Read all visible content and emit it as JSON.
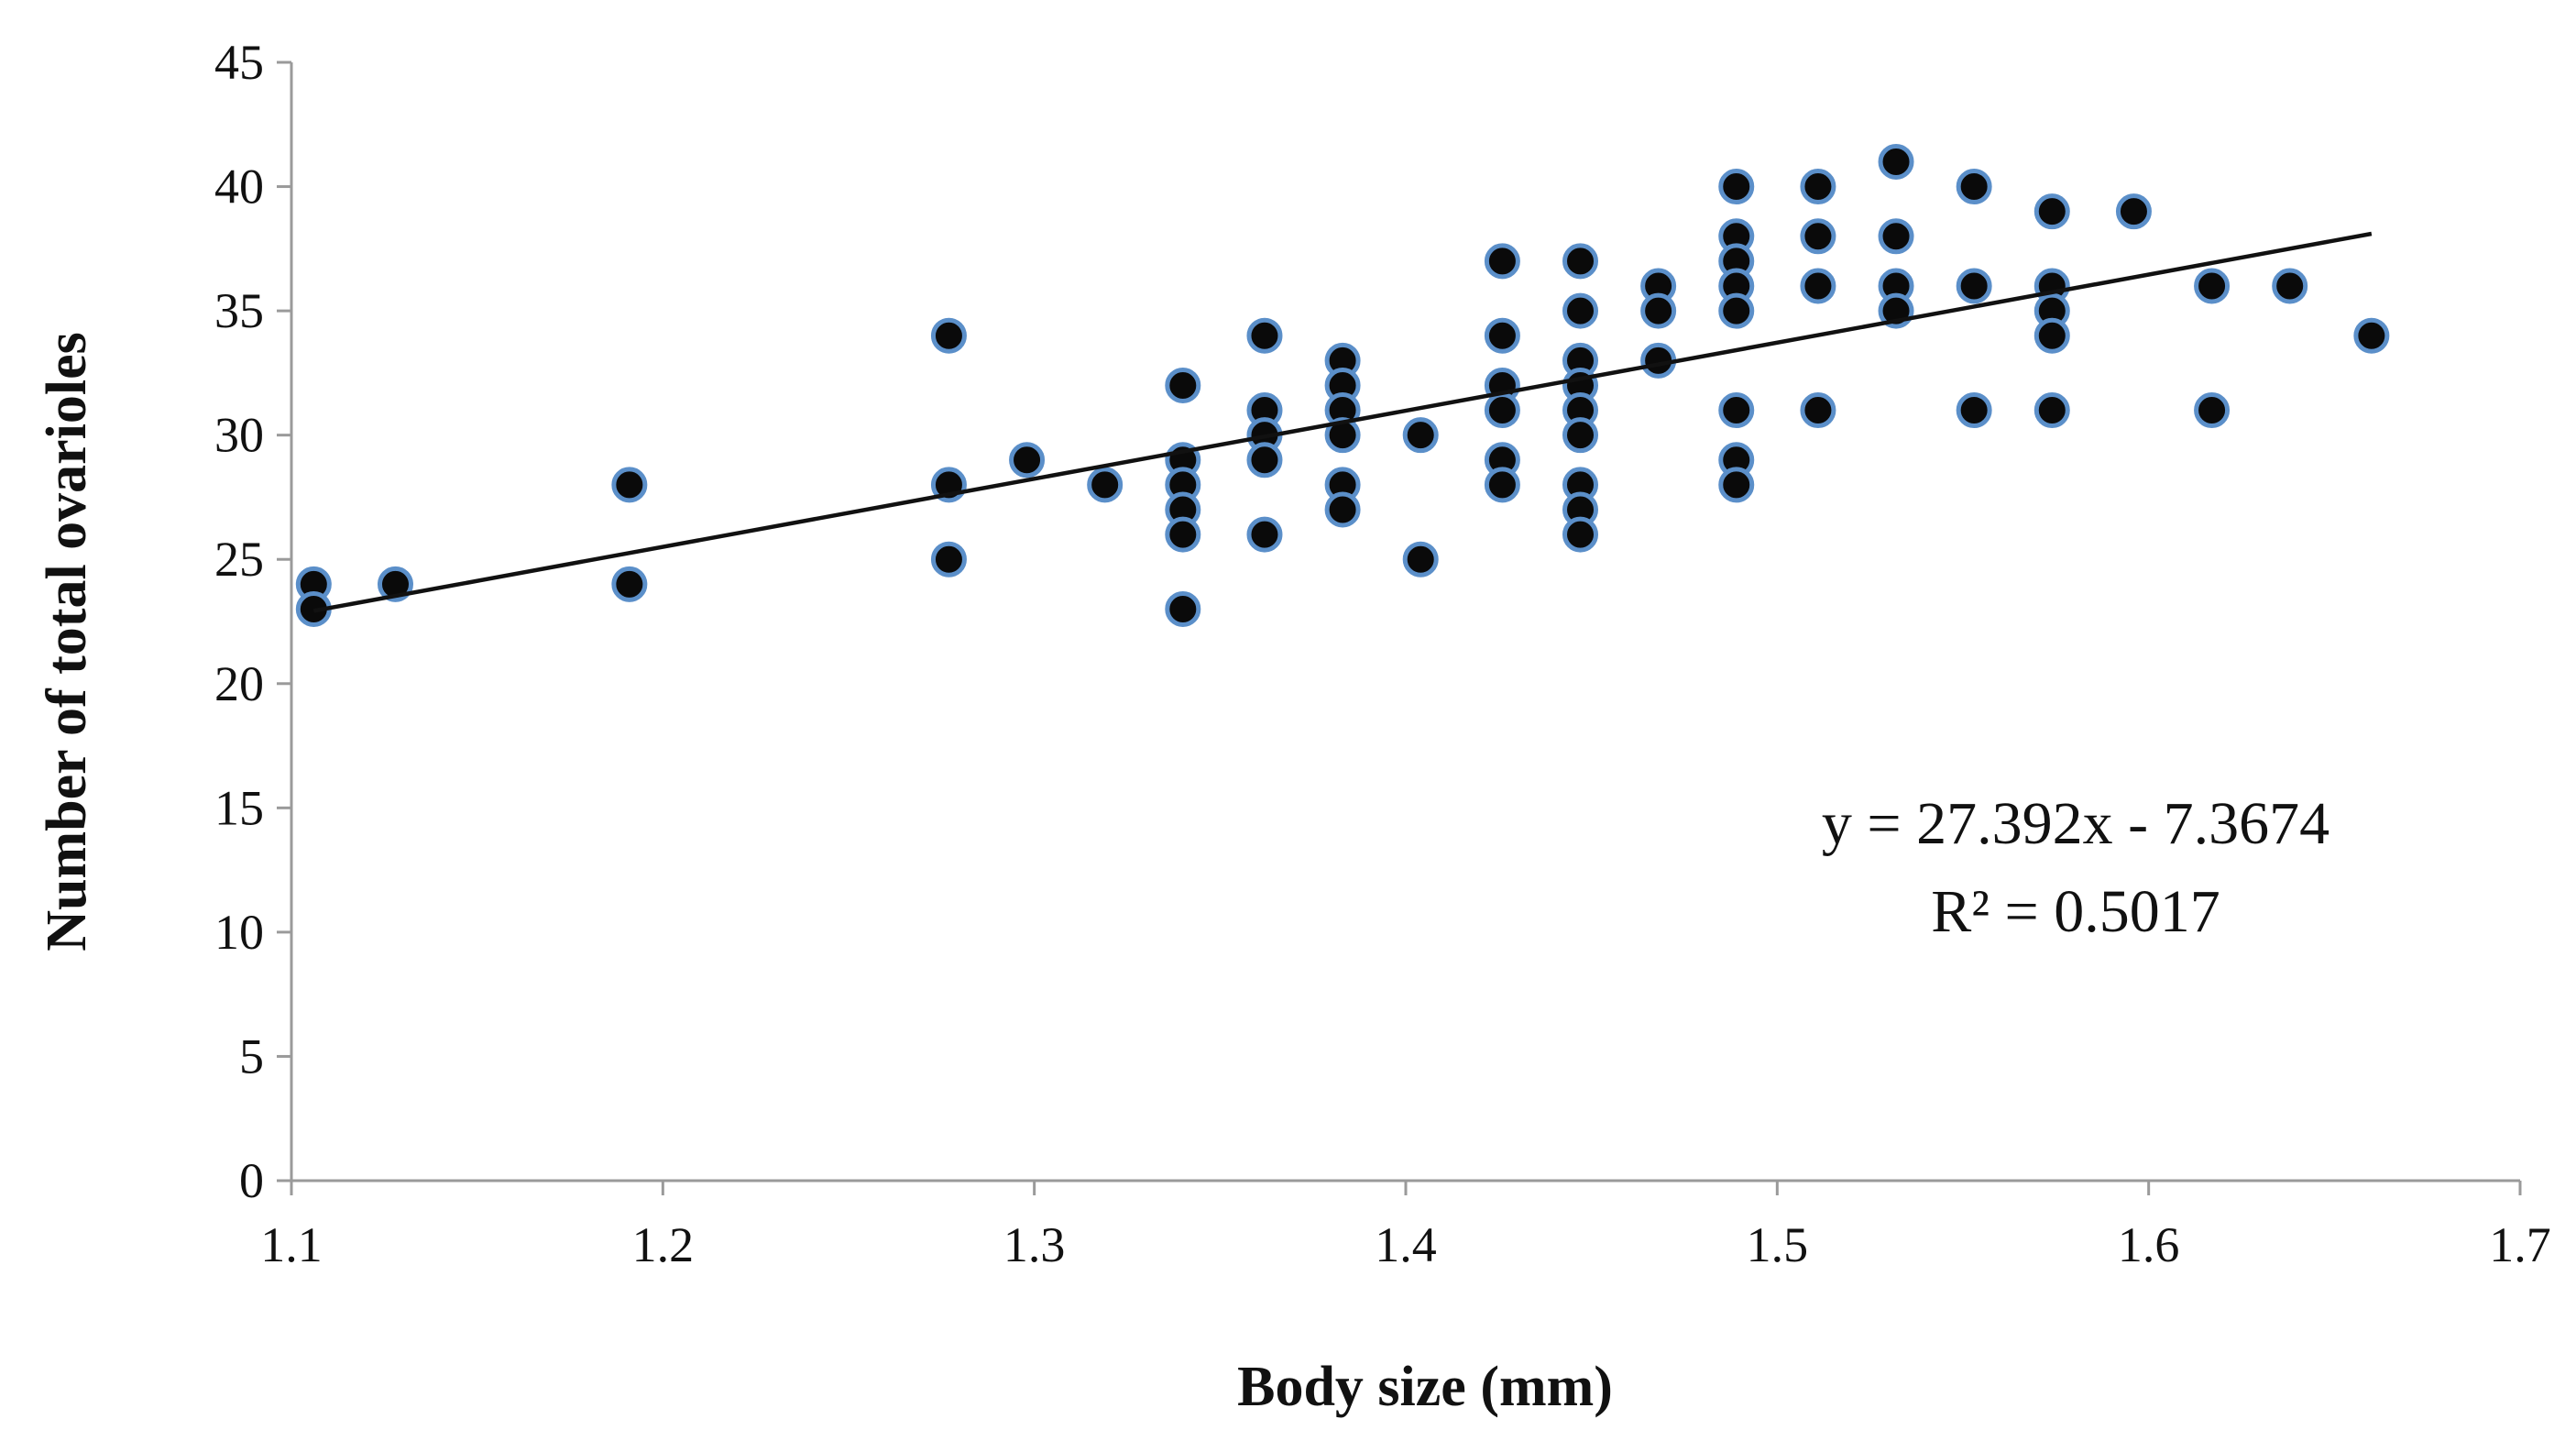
{
  "chart_data": {
    "type": "scatter",
    "title": "",
    "xlabel": "Body size (mm)",
    "ylabel": "Number of total ovarioles",
    "xlim": [
      1.1,
      1.7
    ],
    "ylim": [
      0,
      45
    ],
    "xticks": [
      "1.1",
      "1.2",
      "1.3",
      "1.4",
      "1.5",
      "1.6",
      "1.7"
    ],
    "yticks": [
      "0",
      "5",
      "10",
      "15",
      "20",
      "25",
      "30",
      "35",
      "40",
      "45"
    ],
    "grid": false,
    "legend": "none",
    "marker_fill": "#0a0a0a",
    "marker_edge": "#5b8fc9",
    "trendline": {
      "slope": 27.392,
      "intercept": -7.3674,
      "x_range": [
        1.106,
        1.66
      ],
      "color": "#111111"
    },
    "annotations": {
      "equation": "y = 27.392x - 7.3674",
      "r_squared": "R² = 0.5017"
    },
    "series": [
      {
        "name": "ovarioles",
        "points": [
          [
            1.106,
            24
          ],
          [
            1.106,
            23
          ],
          [
            1.128,
            24
          ],
          [
            1.191,
            28
          ],
          [
            1.191,
            24
          ],
          [
            1.277,
            34
          ],
          [
            1.277,
            28
          ],
          [
            1.277,
            25
          ],
          [
            1.298,
            29
          ],
          [
            1.319,
            28
          ],
          [
            1.34,
            32
          ],
          [
            1.34,
            29
          ],
          [
            1.34,
            28
          ],
          [
            1.34,
            27
          ],
          [
            1.34,
            26
          ],
          [
            1.34,
            23
          ],
          [
            1.362,
            34
          ],
          [
            1.362,
            31
          ],
          [
            1.362,
            30
          ],
          [
            1.362,
            29
          ],
          [
            1.362,
            26
          ],
          [
            1.383,
            33
          ],
          [
            1.383,
            32
          ],
          [
            1.383,
            31
          ],
          [
            1.383,
            30
          ],
          [
            1.383,
            28
          ],
          [
            1.383,
            27
          ],
          [
            1.404,
            30
          ],
          [
            1.404,
            25
          ],
          [
            1.426,
            37
          ],
          [
            1.426,
            34
          ],
          [
            1.426,
            32
          ],
          [
            1.426,
            31
          ],
          [
            1.426,
            29
          ],
          [
            1.426,
            28
          ],
          [
            1.447,
            37
          ],
          [
            1.447,
            35
          ],
          [
            1.447,
            33
          ],
          [
            1.447,
            32
          ],
          [
            1.447,
            31
          ],
          [
            1.447,
            30
          ],
          [
            1.447,
            28
          ],
          [
            1.447,
            27
          ],
          [
            1.447,
            26
          ],
          [
            1.468,
            36
          ],
          [
            1.468,
            35
          ],
          [
            1.468,
            33
          ],
          [
            1.489,
            40
          ],
          [
            1.489,
            38
          ],
          [
            1.489,
            37
          ],
          [
            1.489,
            36
          ],
          [
            1.489,
            35
          ],
          [
            1.489,
            31
          ],
          [
            1.489,
            29
          ],
          [
            1.489,
            28
          ],
          [
            1.511,
            40
          ],
          [
            1.511,
            38
          ],
          [
            1.511,
            36
          ],
          [
            1.511,
            31
          ],
          [
            1.532,
            41
          ],
          [
            1.532,
            38
          ],
          [
            1.532,
            36
          ],
          [
            1.532,
            35
          ],
          [
            1.553,
            40
          ],
          [
            1.553,
            36
          ],
          [
            1.553,
            31
          ],
          [
            1.574,
            39
          ],
          [
            1.574,
            36
          ],
          [
            1.574,
            35
          ],
          [
            1.574,
            34
          ],
          [
            1.574,
            31
          ],
          [
            1.596,
            39
          ],
          [
            1.617,
            36
          ],
          [
            1.617,
            31
          ],
          [
            1.638,
            36
          ],
          [
            1.66,
            34
          ]
        ]
      }
    ]
  }
}
